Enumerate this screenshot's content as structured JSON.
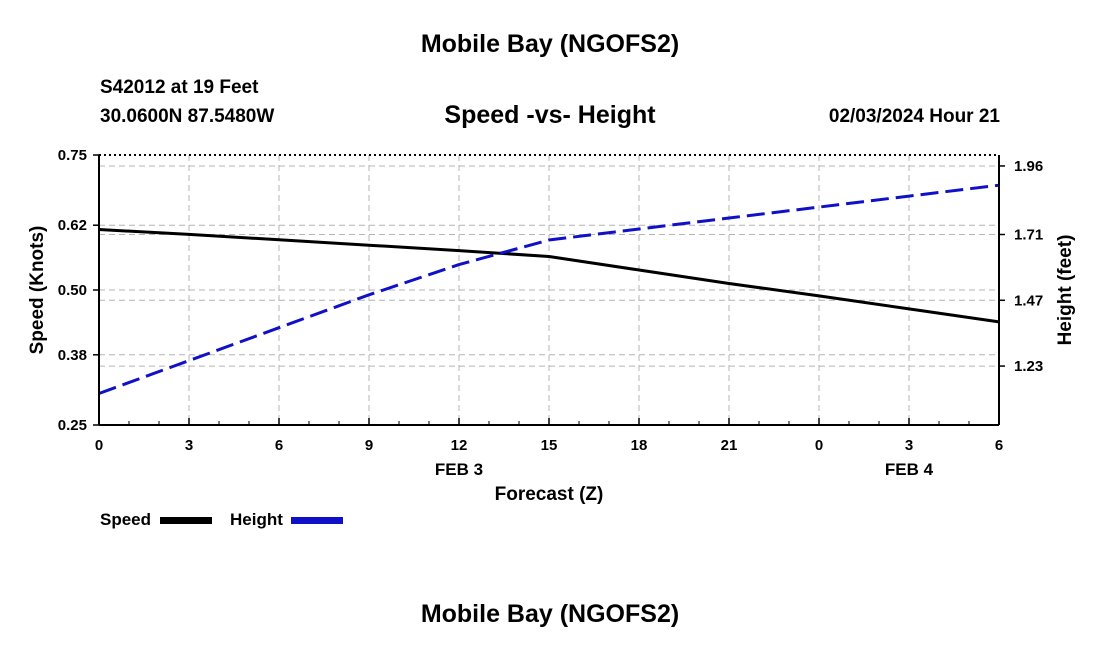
{
  "page": {
    "top_title": "Mobile Bay (NGOFS2)",
    "bottom_title": "Mobile Bay (NGOFS2)",
    "station_line": "S42012 at 19 Feet",
    "coords_line": "30.0600N  87.5480W",
    "subtitle": "Speed -vs- Height",
    "datetime": "02/03/2024 Hour 21"
  },
  "chart_data": {
    "type": "line",
    "xlabel": "Forecast (Z)",
    "ylabel": "Speed (Knots)",
    "y2label": "Height (feet)",
    "x_hours": [
      0,
      3,
      6,
      9,
      12,
      15,
      18,
      21,
      24,
      27,
      30
    ],
    "x_tick_labels": [
      "0",
      "3",
      "6",
      "9",
      "12",
      "15",
      "18",
      "21",
      "0",
      "3",
      "6"
    ],
    "date_labels": [
      {
        "label": "FEB 3",
        "hour": 12
      },
      {
        "label": "FEB 4",
        "hour": 27
      }
    ],
    "xlim": [
      0,
      30
    ],
    "ylim": [
      0.25,
      0.75
    ],
    "y_ticks": [
      "0.25",
      "0.38",
      "0.50",
      "0.62",
      "0.75"
    ],
    "y2lim": [
      1.015,
      2.0
    ],
    "y2_ticks": [
      "1.23",
      "1.47",
      "1.71",
      "1.96"
    ],
    "grid": true,
    "series": [
      {
        "name": "Speed",
        "axis": "left",
        "color": "#000000",
        "style": "solid",
        "x": [
          0,
          3,
          6,
          9,
          12,
          15,
          18,
          21,
          24,
          27,
          30
        ],
        "values": [
          0.612,
          0.603,
          0.593,
          0.583,
          0.573,
          0.562,
          0.537,
          0.512,
          0.489,
          0.465,
          0.441
        ]
      },
      {
        "name": "Height",
        "axis": "right",
        "color": "#1010c8",
        "style": "dashed",
        "x": [
          0,
          3,
          6,
          9,
          12,
          15,
          18,
          21,
          24,
          27,
          30
        ],
        "values": [
          1.13,
          1.25,
          1.37,
          1.49,
          1.6,
          1.69,
          1.73,
          1.77,
          1.81,
          1.85,
          1.89
        ]
      }
    ]
  },
  "legend": {
    "items": [
      {
        "label": "Speed",
        "color": "#000000"
      },
      {
        "label": "Height",
        "color": "#1010c8"
      }
    ]
  }
}
